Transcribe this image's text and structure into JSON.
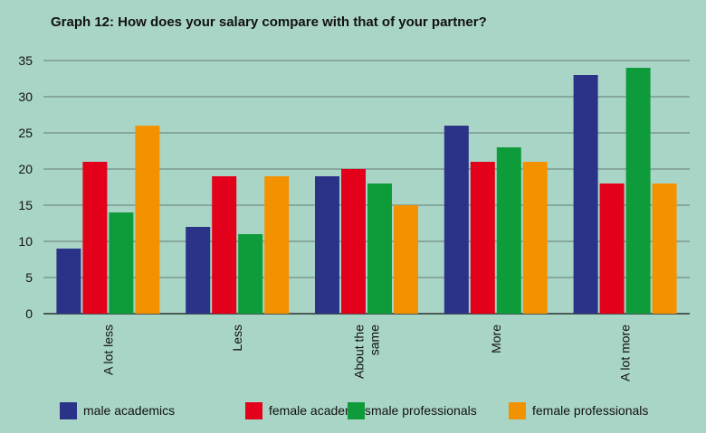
{
  "chart_data": {
    "type": "bar",
    "title": "Graph 12: How does your salary compare with that of your partner?",
    "xlabel": "",
    "ylabel": "",
    "ylim": [
      0,
      35
    ],
    "yticks": [
      0,
      5,
      10,
      15,
      20,
      25,
      30,
      35
    ],
    "grid": true,
    "legend_position": "bottom",
    "categories": [
      [
        "A lot less"
      ],
      [
        "Less"
      ],
      [
        "About the",
        "same"
      ],
      [
        "More"
      ],
      [
        "A lot more"
      ]
    ],
    "series": [
      {
        "name": "male academics",
        "color": "#2b3388",
        "values": [
          9,
          12,
          19,
          26,
          33
        ]
      },
      {
        "name": "female academics",
        "color": "#e3001b",
        "values": [
          21,
          19,
          20,
          21,
          18
        ]
      },
      {
        "name": "male professionals",
        "color": "#0e9b3a",
        "values": [
          14,
          11,
          18,
          23,
          34
        ]
      },
      {
        "name": "female professionals",
        "color": "#f39200",
        "values": [
          26,
          19,
          15,
          21,
          18
        ]
      }
    ]
  }
}
